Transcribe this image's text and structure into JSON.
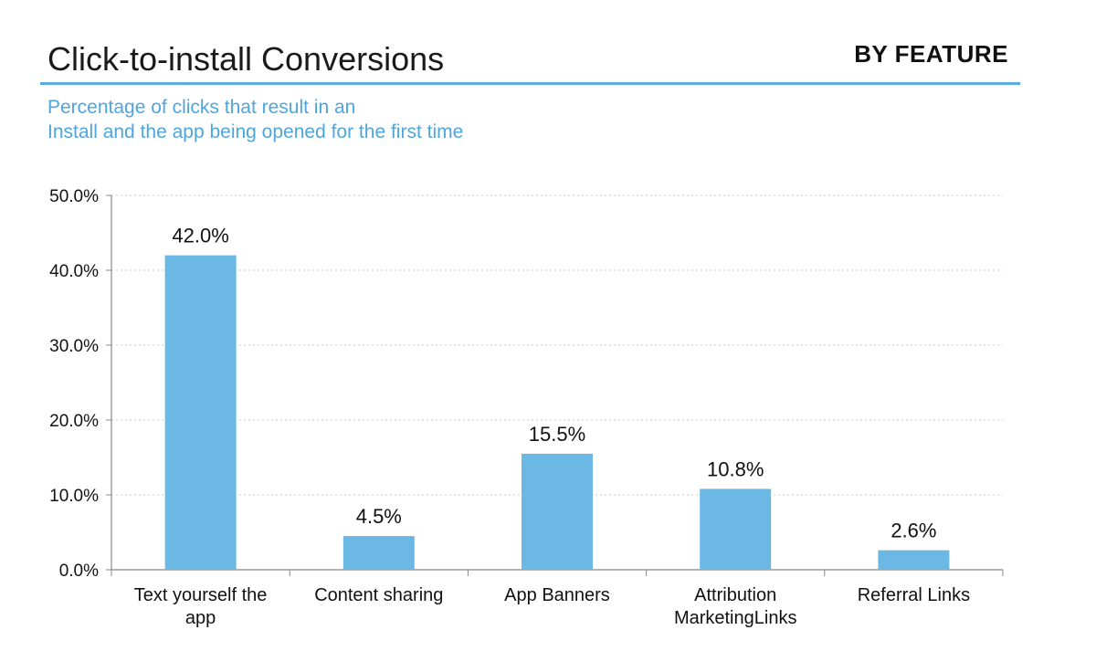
{
  "header": {
    "title": "Click-to-install Conversions",
    "badge": "BY FEATURE",
    "subtitle_lines": [
      "Percentage of clicks that result in an",
      "Install and the app being opened for the first time"
    ]
  },
  "colors": {
    "bar": "#6cb8e4",
    "accent": "#5aace0",
    "subtitle": "#4ea6dd"
  },
  "chart_data": {
    "type": "bar",
    "categories": [
      [
        "Text yourself the",
        "app"
      ],
      [
        "Content sharing"
      ],
      [
        "App Banners"
      ],
      [
        "Attribution",
        "MarketingLinks"
      ],
      [
        "Referral Links"
      ]
    ],
    "values": [
      42.0,
      4.5,
      15.5,
      10.8,
      2.6
    ],
    "data_labels": [
      "42.0%",
      "4.5%",
      "15.5%",
      "10.8%",
      "2.6%"
    ],
    "y_ticks": [
      "0.0%",
      "10.0%",
      "20.0%",
      "30.0%",
      "40.0%",
      "50.0%"
    ],
    "ylim": [
      0,
      50
    ],
    "grid": true,
    "legend": "none"
  }
}
